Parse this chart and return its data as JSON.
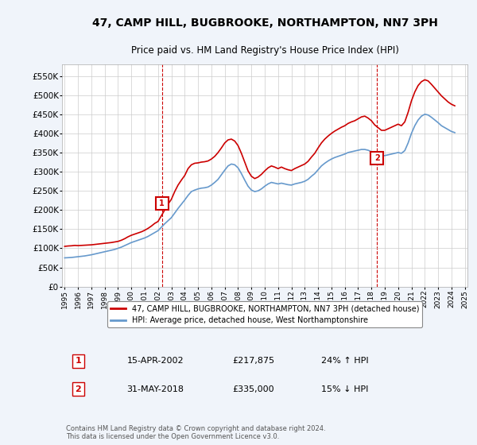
{
  "title": "47, CAMP HILL, BUGBROOKE, NORTHAMPTON, NN7 3PH",
  "subtitle": "Price paid vs. HM Land Registry's House Price Index (HPI)",
  "sale1_date": "2002-04-15",
  "sale1_label": "15-APR-2002",
  "sale1_price": 217875,
  "sale1_hpi_pct": "24% ↑ HPI",
  "sale2_date": "2018-05-31",
  "sale2_label": "31-MAY-2018",
  "sale2_price": 335000,
  "sale2_hpi_pct": "15% ↓ HPI",
  "legend1": "47, CAMP HILL, BUGBROOKE, NORTHAMPTON, NN7 3PH (detached house)",
  "legend2": "HPI: Average price, detached house, West Northamptonshire",
  "footer": "Contains HM Land Registry data © Crown copyright and database right 2024.\nThis data is licensed under the Open Government Licence v3.0.",
  "sale_color": "#cc0000",
  "hpi_color": "#6699cc",
  "marker1_num": "1",
  "marker2_num": "2",
  "ylim": [
    0,
    580000
  ],
  "yticks": [
    0,
    50000,
    100000,
    150000,
    200000,
    250000,
    300000,
    350000,
    400000,
    450000,
    500000,
    550000
  ],
  "ytick_labels": [
    "£0",
    "£50K",
    "£100K",
    "£150K",
    "£200K",
    "£250K",
    "£300K",
    "£350K",
    "£400K",
    "£450K",
    "£500K",
    "£550K"
  ],
  "hpi_dates": [
    1995.0,
    1995.25,
    1995.5,
    1995.75,
    1996.0,
    1996.25,
    1996.5,
    1996.75,
    1997.0,
    1997.25,
    1997.5,
    1997.75,
    1998.0,
    1998.25,
    1998.5,
    1998.75,
    1999.0,
    1999.25,
    1999.5,
    1999.75,
    2000.0,
    2000.25,
    2000.5,
    2000.75,
    2001.0,
    2001.25,
    2001.5,
    2001.75,
    2002.0,
    2002.25,
    2002.5,
    2002.75,
    2003.0,
    2003.25,
    2003.5,
    2003.75,
    2004.0,
    2004.25,
    2004.5,
    2004.75,
    2005.0,
    2005.25,
    2005.5,
    2005.75,
    2006.0,
    2006.25,
    2006.5,
    2006.75,
    2007.0,
    2007.25,
    2007.5,
    2007.75,
    2008.0,
    2008.25,
    2008.5,
    2008.75,
    2009.0,
    2009.25,
    2009.5,
    2009.75,
    2010.0,
    2010.25,
    2010.5,
    2010.75,
    2011.0,
    2011.25,
    2011.5,
    2011.75,
    2012.0,
    2012.25,
    2012.5,
    2012.75,
    2013.0,
    2013.25,
    2013.5,
    2013.75,
    2014.0,
    2014.25,
    2014.5,
    2014.75,
    2015.0,
    2015.25,
    2015.5,
    2015.75,
    2016.0,
    2016.25,
    2016.5,
    2016.75,
    2017.0,
    2017.25,
    2017.5,
    2017.75,
    2018.0,
    2018.25,
    2018.5,
    2018.75,
    2019.0,
    2019.25,
    2019.5,
    2019.75,
    2020.0,
    2020.25,
    2020.5,
    2020.75,
    2021.0,
    2021.25,
    2021.5,
    2021.75,
    2022.0,
    2022.25,
    2022.5,
    2022.75,
    2023.0,
    2023.25,
    2023.5,
    2023.75,
    2024.0,
    2024.25
  ],
  "hpi_values": [
    75000,
    75500,
    76000,
    77000,
    78000,
    79000,
    80000,
    81500,
    83000,
    85000,
    87000,
    89000,
    91000,
    93000,
    95000,
    97000,
    100000,
    103000,
    107000,
    111000,
    115000,
    118000,
    121000,
    124000,
    127000,
    131000,
    136000,
    141000,
    146000,
    155000,
    164000,
    172000,
    180000,
    192000,
    204000,
    215000,
    226000,
    238000,
    248000,
    252000,
    255000,
    257000,
    258000,
    260000,
    265000,
    272000,
    280000,
    292000,
    304000,
    315000,
    320000,
    318000,
    310000,
    295000,
    278000,
    262000,
    252000,
    248000,
    250000,
    255000,
    262000,
    268000,
    272000,
    270000,
    268000,
    270000,
    268000,
    266000,
    265000,
    268000,
    270000,
    272000,
    275000,
    280000,
    288000,
    295000,
    305000,
    315000,
    322000,
    328000,
    333000,
    337000,
    340000,
    343000,
    346000,
    350000,
    352000,
    354000,
    356000,
    358000,
    358000,
    356000,
    352000,
    348000,
    345000,
    342000,
    342000,
    344000,
    346000,
    348000,
    350000,
    348000,
    355000,
    375000,
    400000,
    420000,
    435000,
    445000,
    450000,
    448000,
    442000,
    435000,
    428000,
    420000,
    415000,
    410000,
    405000,
    402000
  ],
  "sale_dates": [
    1995.0,
    1995.25,
    1995.5,
    1995.75,
    1996.0,
    1996.25,
    1996.5,
    1996.75,
    1997.0,
    1997.25,
    1997.5,
    1997.75,
    1998.0,
    1998.25,
    1998.5,
    1998.75,
    1999.0,
    1999.25,
    1999.5,
    1999.75,
    2000.0,
    2000.25,
    2000.5,
    2000.75,
    2001.0,
    2001.25,
    2001.5,
    2001.75,
    2002.0,
    2002.25,
    2002.5,
    2002.75,
    2003.0,
    2003.25,
    2003.5,
    2003.75,
    2004.0,
    2004.25,
    2004.5,
    2004.75,
    2005.0,
    2005.25,
    2005.5,
    2005.75,
    2006.0,
    2006.25,
    2006.5,
    2006.75,
    2007.0,
    2007.25,
    2007.5,
    2007.75,
    2008.0,
    2008.25,
    2008.5,
    2008.75,
    2009.0,
    2009.25,
    2009.5,
    2009.75,
    2010.0,
    2010.25,
    2010.5,
    2010.75,
    2011.0,
    2011.25,
    2011.5,
    2011.75,
    2012.0,
    2012.25,
    2012.5,
    2012.75,
    2013.0,
    2013.25,
    2013.5,
    2013.75,
    2014.0,
    2014.25,
    2014.5,
    2014.75,
    2015.0,
    2015.25,
    2015.5,
    2015.75,
    2016.0,
    2016.25,
    2016.5,
    2016.75,
    2017.0,
    2017.25,
    2017.5,
    2017.75,
    2018.0,
    2018.25,
    2018.5,
    2018.75,
    2019.0,
    2019.25,
    2019.5,
    2019.75,
    2020.0,
    2020.25,
    2020.5,
    2020.75,
    2021.0,
    2021.25,
    2021.5,
    2021.75,
    2022.0,
    2022.25,
    2022.5,
    2022.75,
    2023.0,
    2023.25,
    2023.5,
    2023.75,
    2024.0,
    2024.25
  ],
  "sale_values": [
    105000,
    106000,
    106500,
    107500,
    107000,
    107500,
    108000,
    108500,
    109000,
    110000,
    111000,
    112000,
    113000,
    114000,
    115000,
    116500,
    118000,
    121000,
    125000,
    130000,
    134000,
    137000,
    140000,
    143000,
    147000,
    152000,
    158000,
    165000,
    170000,
    185000,
    200000,
    215000,
    228000,
    248000,
    265000,
    278000,
    290000,
    308000,
    318000,
    322000,
    323000,
    325000,
    326000,
    328000,
    333000,
    340000,
    350000,
    362000,
    375000,
    383000,
    385000,
    380000,
    368000,
    348000,
    325000,
    302000,
    288000,
    282000,
    286000,
    293000,
    302000,
    310000,
    315000,
    312000,
    308000,
    312000,
    308000,
    305000,
    303000,
    308000,
    312000,
    316000,
    320000,
    327000,
    338000,
    348000,
    362000,
    375000,
    385000,
    393000,
    400000,
    406000,
    411000,
    416000,
    420000,
    426000,
    430000,
    433000,
    438000,
    443000,
    445000,
    440000,
    433000,
    422000,
    415000,
    408000,
    408000,
    412000,
    416000,
    420000,
    424000,
    420000,
    430000,
    455000,
    485000,
    508000,
    525000,
    535000,
    540000,
    537000,
    528000,
    518000,
    508000,
    498000,
    490000,
    482000,
    476000,
    472000
  ],
  "sale1_x": 2002.29,
  "sale1_y": 217875,
  "sale2_x": 2018.42,
  "sale2_y": 335000,
  "vline1_x": 2002.29,
  "vline2_x": 2018.42,
  "xtick_years": [
    1995,
    1996,
    1997,
    1998,
    1999,
    2000,
    2001,
    2002,
    2003,
    2004,
    2005,
    2006,
    2007,
    2008,
    2009,
    2010,
    2011,
    2012,
    2013,
    2014,
    2015,
    2016,
    2017,
    2018,
    2019,
    2020,
    2021,
    2022,
    2023,
    2024,
    2025
  ],
  "bg_color": "#f0f4fa",
  "plot_bg": "#ffffff"
}
